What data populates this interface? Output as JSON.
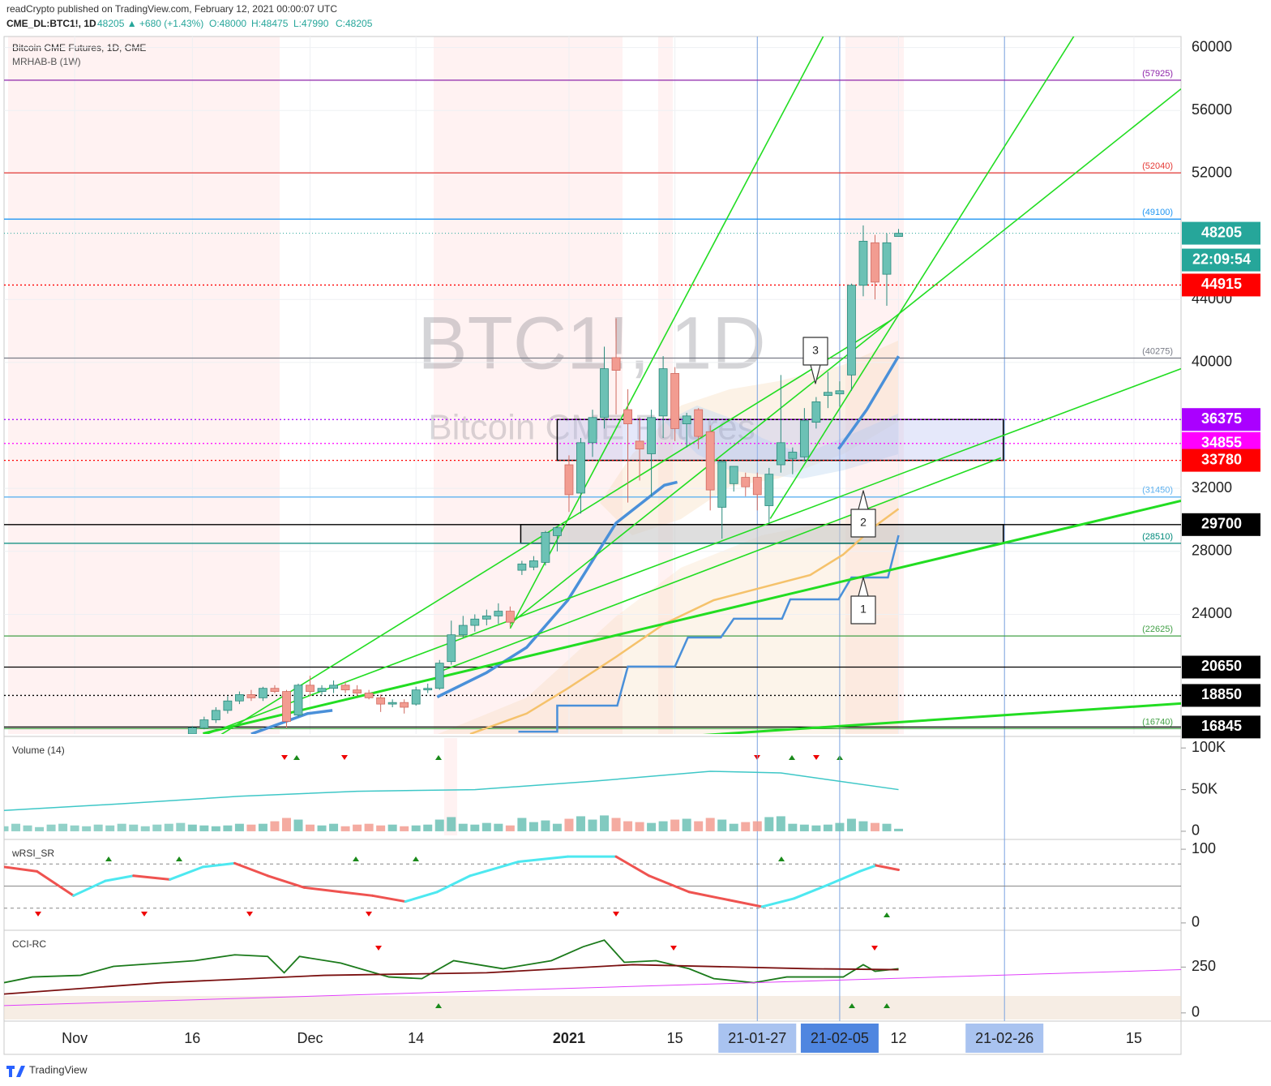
{
  "header": {
    "publisher": "readCrypto published on TradingView.com, February 12, 2021 00:00:07 UTC",
    "symbol": "CME_DL:BTC1!, 1D",
    "change": "48205 ▲ +680 (+1.43%)",
    "ohlc": [
      "O:48000",
      "H:48475",
      "L:47990",
      "C:48205"
    ]
  },
  "footer": {
    "brand": "TradingView"
  },
  "chart_data": {
    "type": "candlestick",
    "title": "Bitcoin CME Futures, 1D, CME",
    "subtitle": "MRHAB-B (1W)",
    "watermark": "BTC1!, 1D",
    "watermark_sub": "Bitcoin CME Futures",
    "x": [
      16,
      17,
      18,
      19,
      20,
      21,
      22,
      23,
      24,
      25,
      26,
      27,
      28,
      29,
      30,
      31,
      32,
      33,
      34,
      35,
      36,
      37,
      38,
      39,
      40,
      41,
      42,
      43,
      44,
      45,
      46,
      47,
      48,
      49,
      50,
      51,
      52,
      53,
      54,
      55,
      56,
      57,
      58,
      59,
      60,
      61,
      62,
      63,
      64,
      65,
      66,
      67,
      68,
      69,
      70,
      71,
      72,
      73,
      74,
      75,
      76
    ],
    "open": [
      16400,
      16800,
      17300,
      17900,
      18500,
      18900,
      18700,
      19300,
      19100,
      17600,
      19500,
      19100,
      19300,
      19500,
      19200,
      19000,
      18700,
      18300,
      18400,
      18300,
      19200,
      19300,
      21000,
      22700,
      23300,
      23700,
      23900,
      24200,
      26800,
      27000,
      27300,
      29000,
      33500,
      31700,
      34900,
      36500,
      40300,
      37000,
      35000,
      34200,
      36600,
      39300,
      36100,
      37000,
      35600,
      30800,
      32300,
      32700,
      32700,
      30900,
      33500,
      33900,
      34000,
      36200,
      37900,
      38000,
      39200,
      44900,
      47600,
      45600,
      48000
    ],
    "high": [
      16900,
      17500,
      18100,
      18800,
      19100,
      19200,
      19400,
      19500,
      19200,
      19600,
      20100,
      19500,
      19800,
      19700,
      19500,
      19200,
      18900,
      18600,
      18600,
      19400,
      19600,
      21100,
      23600,
      23900,
      24000,
      24300,
      24700,
      24500,
      27400,
      27700,
      29300,
      29600,
      34100,
      35200,
      37000,
      41000,
      42800,
      38300,
      36500,
      37000,
      40400,
      39700,
      36800,
      37100,
      36000,
      33800,
      33400,
      33000,
      33000,
      33300,
      39200,
      34600,
      37100,
      37800,
      39400,
      38800,
      45000,
      48700,
      48100,
      48200,
      48475
    ],
    "low": [
      16300,
      16700,
      17100,
      17700,
      18300,
      18500,
      18500,
      19000,
      16800,
      17500,
      18800,
      18900,
      19000,
      19000,
      18800,
      18600,
      17800,
      18100,
      17700,
      18200,
      19000,
      19200,
      20800,
      22500,
      22900,
      23300,
      23400,
      23200,
      26500,
      26800,
      27100,
      28000,
      30500,
      30400,
      34000,
      35800,
      36700,
      31100,
      32500,
      31500,
      35200,
      35000,
      34600,
      34500,
      30600,
      28800,
      31800,
      31500,
      30600,
      29800,
      33000,
      32900,
      33700,
      35800,
      37100,
      37200,
      38200,
      44200,
      44000,
      43600,
      47990
    ],
    "close": [
      16800,
      17300,
      17900,
      18500,
      18900,
      18700,
      19300,
      19100,
      17200,
      19500,
      19100,
      19300,
      19500,
      19200,
      19000,
      18700,
      18300,
      18400,
      18100,
      19200,
      19300,
      20900,
      22700,
      23300,
      23700,
      23900,
      24200,
      23500,
      27200,
      27400,
      29200,
      29500,
      31600,
      34900,
      36500,
      39600,
      39500,
      36100,
      34500,
      36500,
      39600,
      35800,
      36600,
      35300,
      31900,
      33700,
      33400,
      32100,
      31600,
      32900,
      34900,
      34300,
      36300,
      37500,
      38100,
      38200,
      44900,
      47700,
      45100,
      47600,
      48205
    ],
    "up_color": "#6cc1b5",
    "down_color": "#f29c91",
    "xlim": [
      0,
      100
    ],
    "xticks": [
      {
        "value": 6,
        "label": "Nov"
      },
      16,
      {
        "value": 26,
        "label": "Dec"
      },
      {
        "value": 35,
        "label": "14"
      },
      {
        "value": 48,
        "label": "2021",
        "bold": true
      },
      {
        "value": 57,
        "label": "15"
      },
      {
        "value": 64,
        "label": "21-01-27",
        "highlight": true
      },
      {
        "value": 71,
        "label": "21-02-05",
        "highlight": true,
        "active": true
      },
      {
        "value": 76,
        "label": "12"
      },
      {
        "value": 85,
        "label": "21-02-26",
        "highlight": true
      },
      {
        "value": 96,
        "label": "15"
      }
    ],
    "ylim": [
      16400,
      60700
    ],
    "yticks": [
      24000,
      28000,
      32000,
      40000,
      44000,
      52000,
      56000,
      60000
    ],
    "grid": true,
    "levels": [
      {
        "value": 57925,
        "label": "(57925)",
        "color": "#8e24aa"
      },
      {
        "value": 52040,
        "label": "(52040)",
        "color": "#e53935"
      },
      {
        "value": 49100,
        "label": "(49100)",
        "color": "#2196f3"
      },
      {
        "value": 44915,
        "color": "#ff0000",
        "dash": true,
        "tag": true
      },
      {
        "value": 40275,
        "label": "(40275)",
        "color": "#787b86"
      },
      {
        "value": 36375,
        "color": "#aa00ff",
        "dash": true,
        "tag": true
      },
      {
        "value": 34855,
        "color": "#ff00ff",
        "dash": true,
        "tag": true
      },
      {
        "value": 33780,
        "color": "#ff0000",
        "dash": true,
        "tag": true
      },
      {
        "value": 31450,
        "label": "(31450)",
        "color": "#5eb2f0"
      },
      {
        "value": 29700,
        "color": "#000000",
        "tag": true
      },
      {
        "value": 28510,
        "label": "(28510)",
        "color": "#00897b"
      },
      {
        "value": 22625,
        "label": "(22625)",
        "color": "#43a047"
      },
      {
        "value": 20650,
        "color": "#000000",
        "tag": true
      },
      {
        "value": 18850,
        "color": "#000000",
        "dash": true,
        "tag": true
      },
      {
        "value": 16740,
        "label": "(16740)",
        "color": "#43a047"
      },
      {
        "value": 16845,
        "color": "#000000",
        "tag": true
      }
    ],
    "last_price": {
      "value": 48205,
      "countdown": "22:09:54",
      "color": "#26a69a"
    },
    "boxes": [
      {
        "x": [
          47,
          84.9
        ],
        "values": [
          33780,
          36375
        ],
        "fill": "rgba(180,190,240,0.35)"
      },
      {
        "x": [
          43.9,
          84.9
        ],
        "values": [
          28510,
          29700
        ],
        "fill": "rgba(200,200,200,0.6)"
      }
    ],
    "trendlines": [
      {
        "x": [
          43,
          69.6
        ],
        "values": [
          23100,
          60700
        ],
        "color": "#22dd22"
      },
      {
        "x": [
          65.1,
          90.9
        ],
        "values": [
          30080,
          60720
        ],
        "color": "#22dd22"
      },
      {
        "x": [
          43,
          100
        ],
        "values": [
          23400,
          57370
        ],
        "color": "#22dd22"
      },
      {
        "x": [
          16.9,
          100
        ],
        "values": [
          16300,
          39600
        ],
        "color": "#22dd22"
      },
      {
        "x": [
          16.9,
          100
        ],
        "values": [
          16430,
          31210
        ],
        "color": "#22dd22",
        "thick": true
      },
      {
        "x": [
          58.9,
          100
        ],
        "values": [
          16300,
          18340
        ],
        "color": "#22dd22",
        "thick": true
      },
      {
        "x": [
          18.3,
          75.4
        ],
        "values": [
          16300,
          42700
        ],
        "color": "#22dd22"
      },
      {
        "x": [
          36.8,
          84.7
        ],
        "values": [
          20300,
          33940
        ],
        "color": "#22dd22"
      }
    ],
    "overlays": [
      {
        "color": "#4a90d9",
        "thick": true,
        "x": [
          21,
          25.8,
          27.9,
          30,
          36.8,
          41,
          44.4,
          47.9,
          52,
          56.1,
          57.2,
          60,
          70.9,
          73.3,
          76
        ],
        "values": [
          16400,
          17700,
          17900,
          null,
          18750,
          20300,
          21900,
          24900,
          29800,
          32200,
          32400,
          null,
          34500,
          37000,
          40400
        ]
      },
      {
        "color": "#4a90d9",
        "x": [
          43.7,
          47,
          47,
          52.1,
          53,
          57,
          58.1,
          60.9,
          62,
          66.1,
          66.8,
          70.9,
          72,
          75.1,
          76
        ],
        "values": [
          16550,
          16550,
          18200,
          18200,
          20680,
          20680,
          22530,
          22530,
          23720,
          23720,
          24950,
          24950,
          26340,
          26340,
          29020
        ]
      },
      {
        "color": "#f5c26b",
        "x": [
          39.6,
          44.4,
          47.9,
          52,
          56.1,
          60.3,
          64.4,
          68.5,
          71.3,
          74,
          76
        ],
        "values": [
          16400,
          17700,
          19300,
          21300,
          23400,
          24900,
          25700,
          26500,
          27800,
          29600,
          30700
        ]
      }
    ],
    "annotations": [
      {
        "text": "1"
      },
      {
        "text": "2"
      },
      {
        "text": "3"
      }
    ],
    "volume": {
      "title": "Volume (14)",
      "color": "#7fc9be",
      "x": [
        0,
        1,
        2,
        3,
        4,
        5,
        6,
        7,
        8,
        9,
        10,
        11,
        12,
        13,
        14,
        15,
        16,
        17,
        18,
        19,
        20,
        21,
        22,
        23,
        24,
        25,
        26,
        27,
        28,
        29,
        30,
        31,
        32,
        33,
        34,
        35,
        36,
        37,
        38,
        39,
        40,
        41,
        42,
        43,
        44,
        45,
        46,
        47,
        48,
        49,
        50,
        51,
        52,
        53,
        54,
        55,
        56,
        57,
        58,
        59,
        60,
        61,
        62,
        63,
        64,
        65,
        66,
        67,
        68,
        69,
        70,
        71,
        72,
        73,
        74,
        75,
        76
      ],
      "values": [
        6000,
        9000,
        7000,
        5000,
        8000,
        9000,
        7000,
        6000,
        8000,
        7000,
        9000,
        8000,
        6000,
        8000,
        9000,
        10000,
        8000,
        7000,
        6000,
        7000,
        9000,
        8000,
        9000,
        12000,
        16000,
        14000,
        8000,
        7000,
        9000,
        6000,
        8000,
        9000,
        7000,
        8000,
        6000,
        7000,
        8000,
        14000,
        17000,
        9000,
        8000,
        10000,
        9000,
        7000,
        16000,
        11000,
        13000,
        9000,
        15000,
        18000,
        14000,
        19000,
        16000,
        12000,
        11000,
        10000,
        12000,
        14000,
        15000,
        12000,
        16000,
        14000,
        9000,
        11000,
        12000,
        17000,
        18000,
        9000,
        8000,
        7000,
        8000,
        10000,
        15000,
        12000,
        10000,
        9000,
        3000
      ],
      "ylim": [
        -4950,
        111900
      ],
      "yticks": [
        {
          "value": 100000,
          "label": "100K"
        },
        {
          "value": 50000,
          "label": "50K"
        },
        0
      ],
      "ma": {
        "color": "#3ec7c7",
        "x": [
          0,
          10,
          20,
          30,
          40,
          50,
          60,
          66,
          70,
          76
        ],
        "values": [
          25000,
          33000,
          42000,
          48000,
          50000,
          60000,
          72000,
          70000,
          62000,
          50000
        ]
      }
    },
    "rsi": {
      "title": "wRSI_SR",
      "rise_color": "#4de8f0",
      "fall_color": "#ef5350",
      "x": [
        0,
        2.8,
        5.9,
        8.6,
        11,
        14.1,
        16.9,
        19.6,
        22.4,
        25.5,
        28.6,
        31.3,
        34.1,
        36.8,
        39.6,
        43.7,
        47.9,
        52,
        54.8,
        58.2,
        61.6,
        64.4,
        67.1,
        69.9,
        72.7,
        74.1,
        76
      ],
      "values": [
        76,
        70,
        37,
        57,
        64,
        59,
        76,
        81,
        64,
        48,
        42,
        37,
        29,
        42,
        64,
        83,
        90,
        90,
        64,
        42,
        31,
        22,
        33,
        51,
        70,
        78,
        72
      ],
      "ylim": [
        -7.8,
        111.1
      ],
      "yticks": [
        100,
        0
      ],
      "hlines": [
        80,
        50,
        20
      ]
    },
    "cci": {
      "title": "CCI-RC",
      "ylim": [
        -36,
        442
      ],
      "yticks": [
        250,
        0
      ],
      "series": [
        {
          "color": "#1b7a1b",
          "x": [
            0,
            2.4,
            6.5,
            9.3,
            13.4,
            16.2,
            19.6,
            22.4,
            23.8,
            25.1,
            28.6,
            32.7,
            35.5,
            38.2,
            42.4,
            46.5,
            49.2,
            51,
            52.7,
            55.4,
            58.2,
            60.3,
            63.7,
            66.5,
            69.2,
            71.3,
            73,
            74,
            76
          ],
          "values": [
            165,
            196,
            205,
            254,
            272,
            285,
            317,
            308,
            219,
            308,
            272,
            196,
            187,
            285,
            241,
            285,
            361,
            397,
            276,
            285,
            241,
            187,
            165,
            196,
            196,
            196,
            263,
            227,
            241
          ]
        },
        {
          "color": "#7a1010",
          "x": [
            0,
            13.4,
            27.2,
            41,
            53.4,
            68.5,
            76
          ],
          "values": [
            103,
            165,
            205,
            219,
            263,
            241,
            236
          ]
        },
        {
          "color": "#e040fb",
          "x": [
            0,
            100
          ],
          "values": [
            40,
            236
          ]
        }
      ]
    }
  }
}
